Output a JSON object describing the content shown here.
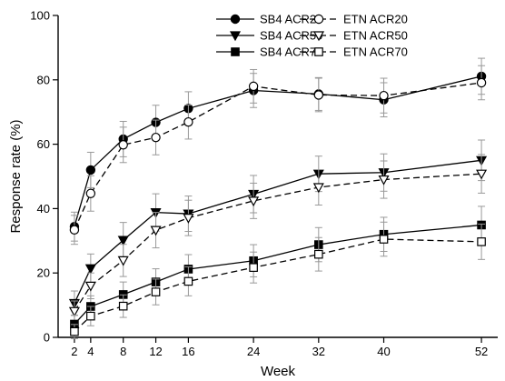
{
  "chart_data": {
    "type": "line",
    "title": "",
    "xlabel": "Week",
    "ylabel": "Response rate (%)",
    "x": [
      2,
      4,
      8,
      12,
      16,
      24,
      32,
      40,
      52
    ],
    "x_tick_labels": [
      "2",
      "4",
      "8",
      "12",
      "16",
      "24",
      "32",
      "40",
      "52"
    ],
    "xlim": [
      0,
      54
    ],
    "ylim": [
      0,
      100
    ],
    "y_ticks": [
      0,
      20,
      40,
      60,
      80,
      100
    ],
    "y_tick_labels": [
      "0",
      "20",
      "40",
      "60",
      "80",
      "100"
    ],
    "grid": false,
    "legend_position": "top-right",
    "series": [
      {
        "name": "SB4 ACR20",
        "values": [
          34.4,
          52.0,
          61.6,
          66.8,
          71.1,
          76.7,
          75.6,
          73.8,
          81.1
        ],
        "error": [
          4.5,
          5.5,
          5.5,
          5.3,
          5.2,
          5.3,
          5.1,
          5.3,
          5.6
        ],
        "marker": "circle",
        "filled": true,
        "dash": "solid"
      },
      {
        "name": "ETN ACR20",
        "values": [
          33.4,
          44.7,
          59.8,
          62.1,
          66.9,
          78.0,
          75.3,
          75.1,
          79.1
        ],
        "error": [
          4.5,
          5.5,
          5.5,
          5.4,
          5.3,
          5.2,
          5.2,
          5.4,
          5.3
        ],
        "marker": "circle",
        "filled": false,
        "dash": "dashed"
      },
      {
        "name": "SB4 ACR50",
        "values": [
          10.6,
          21.4,
          30.2,
          38.8,
          38.4,
          44.5,
          50.8,
          51.2,
          55.0
        ],
        "error": [
          3.8,
          4.5,
          5.5,
          5.8,
          5.5,
          5.8,
          5.5,
          5.8,
          6.3
        ],
        "marker": "triangle-down",
        "filled": true,
        "dash": "solid"
      },
      {
        "name": "ETN ACR50",
        "values": [
          8.1,
          16.0,
          23.9,
          33.3,
          37.1,
          42.4,
          46.6,
          49.0,
          50.8
        ],
        "error": [
          3.2,
          4.0,
          5.0,
          5.5,
          5.5,
          5.5,
          5.5,
          5.8,
          6.0
        ],
        "marker": "triangle-down",
        "filled": false,
        "dash": "dashed"
      },
      {
        "name": "SB4 ACR70",
        "values": [
          4.1,
          9.6,
          13.3,
          17.2,
          21.2,
          23.8,
          28.8,
          32.0,
          34.9
        ],
        "error": [
          2.8,
          3.3,
          3.9,
          4.1,
          4.5,
          5.0,
          5.3,
          5.3,
          5.8
        ],
        "marker": "square",
        "filled": true,
        "dash": "solid"
      },
      {
        "name": "ETN ACR70",
        "values": [
          1.8,
          6.6,
          9.7,
          14.1,
          17.4,
          21.7,
          25.8,
          30.5,
          29.7
        ],
        "error": [
          2.2,
          3.0,
          3.5,
          4.0,
          4.5,
          4.8,
          5.2,
          5.3,
          5.5
        ],
        "marker": "square",
        "filled": false,
        "dash": "dashed"
      }
    ]
  }
}
